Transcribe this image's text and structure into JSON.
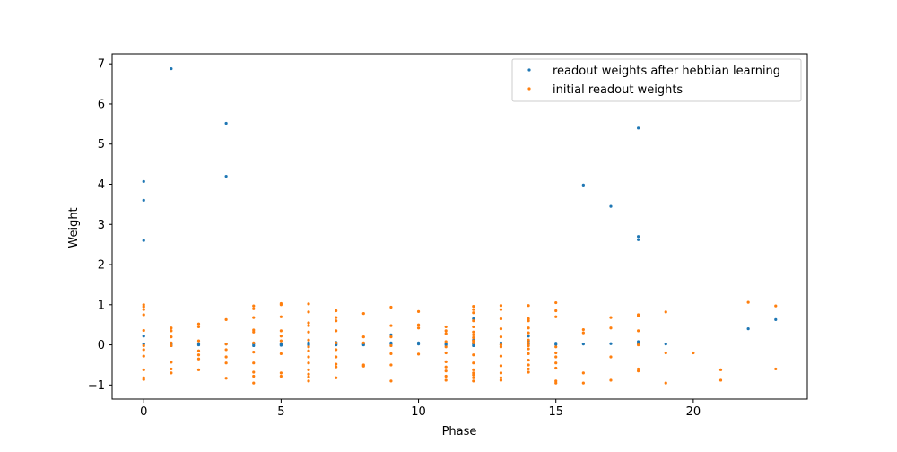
{
  "chart_data": {
    "type": "scatter",
    "title": "",
    "xlabel": "Phase",
    "ylabel": "Weight",
    "xlim": [
      -1.15,
      24.15
    ],
    "ylim": [
      -1.35,
      7.25
    ],
    "xticks": [
      0,
      5,
      10,
      15,
      20
    ],
    "xtick_labels": [
      "0",
      "5",
      "10",
      "15",
      "20"
    ],
    "yticks": [
      -1,
      0,
      1,
      2,
      3,
      4,
      5,
      6,
      7
    ],
    "ytick_labels": [
      "−1",
      "0",
      "1",
      "2",
      "3",
      "4",
      "5",
      "6",
      "7"
    ],
    "grid": false,
    "legend_position": "upper right",
    "series": [
      {
        "name": "readout weights after hebbian learning",
        "color": "#1f77b4",
        "points": [
          [
            0,
            4.07
          ],
          [
            0,
            3.6
          ],
          [
            0,
            2.6
          ],
          [
            0,
            0.22
          ],
          [
            0,
            0.02
          ],
          [
            1,
            6.88
          ],
          [
            1,
            0.02
          ],
          [
            1,
            -0.02
          ],
          [
            2,
            0.03
          ],
          [
            2,
            0.0
          ],
          [
            3,
            5.52
          ],
          [
            3,
            4.2
          ],
          [
            3,
            0.02
          ],
          [
            4,
            0.02
          ],
          [
            4,
            -0.02
          ],
          [
            5,
            0.03
          ],
          [
            5,
            0.0
          ],
          [
            5,
            -0.01
          ],
          [
            6,
            0.05
          ],
          [
            6,
            0.02
          ],
          [
            6,
            0.0
          ],
          [
            7,
            0.06
          ],
          [
            7,
            0.02
          ],
          [
            7,
            0.0
          ],
          [
            8,
            0.03
          ],
          [
            8,
            0.0
          ],
          [
            9,
            0.25
          ],
          [
            9,
            0.05
          ],
          [
            9,
            0.02
          ],
          [
            10,
            0.05
          ],
          [
            10,
            0.02
          ],
          [
            11,
            0.03
          ],
          [
            11,
            0.0
          ],
          [
            12,
            0.65
          ],
          [
            12,
            0.12
          ],
          [
            12,
            0.05
          ],
          [
            12,
            0.02
          ],
          [
            12,
            -0.02
          ],
          [
            13,
            0.05
          ],
          [
            13,
            0.01
          ],
          [
            14,
            0.22
          ],
          [
            14,
            0.1
          ],
          [
            14,
            0.05
          ],
          [
            14,
            0.02
          ],
          [
            15,
            0.04
          ],
          [
            15,
            0.01
          ],
          [
            16,
            3.98
          ],
          [
            16,
            0.02
          ],
          [
            17,
            3.45
          ],
          [
            17,
            0.03
          ],
          [
            18,
            5.4
          ],
          [
            18,
            2.7
          ],
          [
            18,
            2.62
          ],
          [
            18,
            0.08
          ],
          [
            18,
            0.02
          ],
          [
            19,
            0.02
          ],
          [
            22,
            0.4
          ],
          [
            23,
            0.63
          ]
        ]
      },
      {
        "name": "initial readout weights",
        "color": "#ff7f0e",
        "points": [
          [
            0,
            1.0
          ],
          [
            0,
            0.95
          ],
          [
            0,
            0.88
          ],
          [
            0,
            0.75
          ],
          [
            0,
            0.36
          ],
          [
            0,
            -0.02
          ],
          [
            0,
            -0.12
          ],
          [
            0,
            -0.28
          ],
          [
            0,
            -0.62
          ],
          [
            0,
            -0.82
          ],
          [
            0,
            -0.86
          ],
          [
            1,
            0.42
          ],
          [
            1,
            0.35
          ],
          [
            1,
            0.2
          ],
          [
            1,
            0.05
          ],
          [
            1,
            -0.02
          ],
          [
            1,
            -0.43
          ],
          [
            1,
            -0.6
          ],
          [
            1,
            -0.7
          ],
          [
            2,
            0.52
          ],
          [
            2,
            0.45
          ],
          [
            2,
            0.1
          ],
          [
            2,
            -0.15
          ],
          [
            2,
            -0.25
          ],
          [
            2,
            -0.35
          ],
          [
            2,
            -0.62
          ],
          [
            3,
            0.63
          ],
          [
            3,
            0.02
          ],
          [
            3,
            -0.12
          ],
          [
            3,
            -0.3
          ],
          [
            3,
            -0.45
          ],
          [
            3,
            -0.83
          ],
          [
            4,
            0.97
          ],
          [
            4,
            0.9
          ],
          [
            4,
            0.68
          ],
          [
            4,
            0.37
          ],
          [
            4,
            0.32
          ],
          [
            4,
            0.05
          ],
          [
            4,
            -0.18
          ],
          [
            4,
            -0.45
          ],
          [
            4,
            -0.68
          ],
          [
            4,
            -0.78
          ],
          [
            4,
            -0.95
          ],
          [
            5,
            1.03
          ],
          [
            5,
            1.0
          ],
          [
            5,
            0.7
          ],
          [
            5,
            0.35
          ],
          [
            5,
            0.22
          ],
          [
            5,
            0.1
          ],
          [
            5,
            -0.22
          ],
          [
            5,
            -0.7
          ],
          [
            5,
            -0.78
          ],
          [
            6,
            1.02
          ],
          [
            6,
            0.82
          ],
          [
            6,
            0.55
          ],
          [
            6,
            0.48
          ],
          [
            6,
            0.32
          ],
          [
            6,
            0.12
          ],
          [
            6,
            -0.05
          ],
          [
            6,
            -0.15
          ],
          [
            6,
            -0.3
          ],
          [
            6,
            -0.45
          ],
          [
            6,
            -0.62
          ],
          [
            6,
            -0.73
          ],
          [
            6,
            -0.8
          ],
          [
            6,
            -0.9
          ],
          [
            7,
            0.85
          ],
          [
            7,
            0.68
          ],
          [
            7,
            0.6
          ],
          [
            7,
            0.35
          ],
          [
            7,
            0.05
          ],
          [
            7,
            -0.12
          ],
          [
            7,
            -0.3
          ],
          [
            7,
            -0.48
          ],
          [
            7,
            -0.55
          ],
          [
            7,
            -0.82
          ],
          [
            8,
            0.78
          ],
          [
            8,
            0.2
          ],
          [
            8,
            0.05
          ],
          [
            8,
            -0.5
          ],
          [
            8,
            -0.53
          ],
          [
            9,
            0.94
          ],
          [
            9,
            0.48
          ],
          [
            9,
            0.2
          ],
          [
            9,
            -0.02
          ],
          [
            9,
            -0.22
          ],
          [
            9,
            -0.5
          ],
          [
            9,
            -0.9
          ],
          [
            10,
            0.83
          ],
          [
            10,
            0.5
          ],
          [
            10,
            0.42
          ],
          [
            10,
            -0.23
          ],
          [
            11,
            0.45
          ],
          [
            11,
            0.35
          ],
          [
            11,
            0.28
          ],
          [
            11,
            0.08
          ],
          [
            11,
            -0.05
          ],
          [
            11,
            -0.2
          ],
          [
            11,
            -0.42
          ],
          [
            11,
            -0.55
          ],
          [
            11,
            -0.65
          ],
          [
            11,
            -0.78
          ],
          [
            11,
            -0.88
          ],
          [
            12,
            0.96
          ],
          [
            12,
            0.88
          ],
          [
            12,
            0.8
          ],
          [
            12,
            0.6
          ],
          [
            12,
            0.45
          ],
          [
            12,
            0.32
          ],
          [
            12,
            0.25
          ],
          [
            12,
            0.18
          ],
          [
            12,
            0.1
          ],
          [
            12,
            0.05
          ],
          [
            12,
            -0.25
          ],
          [
            12,
            -0.45
          ],
          [
            12,
            -0.62
          ],
          [
            12,
            -0.7
          ],
          [
            12,
            -0.75
          ],
          [
            12,
            -0.82
          ],
          [
            12,
            -0.9
          ],
          [
            13,
            0.98
          ],
          [
            13,
            0.88
          ],
          [
            13,
            0.65
          ],
          [
            13,
            0.4
          ],
          [
            13,
            0.2
          ],
          [
            13,
            0.0
          ],
          [
            13,
            -0.05
          ],
          [
            13,
            -0.28
          ],
          [
            13,
            -0.52
          ],
          [
            13,
            -0.7
          ],
          [
            13,
            -0.82
          ],
          [
            13,
            -0.88
          ],
          [
            14,
            0.98
          ],
          [
            14,
            0.65
          ],
          [
            14,
            0.6
          ],
          [
            14,
            0.42
          ],
          [
            14,
            0.3
          ],
          [
            14,
            0.12
          ],
          [
            14,
            0.05
          ],
          [
            14,
            -0.02
          ],
          [
            14,
            -0.1
          ],
          [
            14,
            -0.22
          ],
          [
            14,
            -0.38
          ],
          [
            14,
            -0.5
          ],
          [
            14,
            -0.6
          ],
          [
            14,
            -0.68
          ],
          [
            15,
            1.05
          ],
          [
            15,
            0.85
          ],
          [
            15,
            0.7
          ],
          [
            15,
            -0.05
          ],
          [
            15,
            -0.2
          ],
          [
            15,
            -0.3
          ],
          [
            15,
            -0.45
          ],
          [
            15,
            -0.58
          ],
          [
            15,
            -0.9
          ],
          [
            15,
            -0.95
          ],
          [
            16,
            0.38
          ],
          [
            16,
            0.3
          ],
          [
            16,
            -0.7
          ],
          [
            16,
            -0.95
          ],
          [
            17,
            0.68
          ],
          [
            17,
            0.42
          ],
          [
            17,
            -0.3
          ],
          [
            17,
            -0.88
          ],
          [
            18,
            0.75
          ],
          [
            18,
            0.72
          ],
          [
            18,
            0.35
          ],
          [
            18,
            0.0
          ],
          [
            18,
            -0.6
          ],
          [
            18,
            -0.65
          ],
          [
            19,
            0.82
          ],
          [
            19,
            -0.2
          ],
          [
            19,
            -0.95
          ],
          [
            20,
            -0.2
          ],
          [
            21,
            -0.62
          ],
          [
            21,
            -0.88
          ],
          [
            22,
            1.06
          ],
          [
            23,
            0.97
          ],
          [
            23,
            -0.6
          ]
        ]
      }
    ]
  }
}
